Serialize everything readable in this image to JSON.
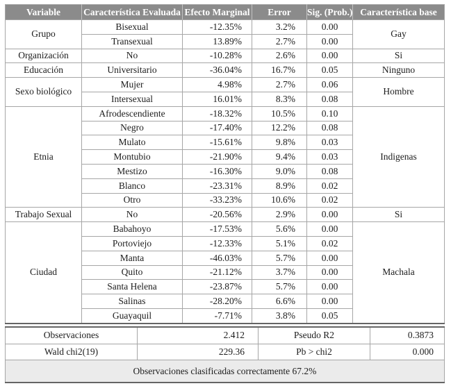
{
  "colors": {
    "header_bg": "#8b8b8b",
    "header_text": "#ffffff",
    "grid_line": "#a6a6a6",
    "outer_line": "#656565",
    "footer_bg": "#ebebeb"
  },
  "table": {
    "headers": [
      "Variable",
      "Característica Evaluada",
      "Efecto Marginal",
      "Error",
      "Sig. (Prob.)",
      "Característica base"
    ],
    "groups": [
      {
        "variable": "Grupo",
        "base": "Gay",
        "rows": [
          [
            "Bisexual",
            "-12.35%",
            "3.2%",
            "0.00"
          ],
          [
            "Transexual",
            "13.89%",
            "2.7%",
            "0.00"
          ]
        ]
      },
      {
        "variable": "Organización",
        "base": "Si",
        "rows": [
          [
            "No",
            "-10.28%",
            "2.6%",
            "0.00"
          ]
        ]
      },
      {
        "variable": "Educación",
        "base": "Ninguno",
        "rows": [
          [
            "Universitario",
            "-36.04%",
            "16.7%",
            "0.05"
          ]
        ]
      },
      {
        "variable": "Sexo biológico",
        "base": "Hombre",
        "rows": [
          [
            "Mujer",
            "4.98%",
            "2.7%",
            "0.06"
          ],
          [
            "Intersexual",
            "16.01%",
            "8.3%",
            "0.08"
          ]
        ]
      },
      {
        "variable": "Etnia",
        "base": "Indigenas",
        "rows": [
          [
            "Afrodescendiente",
            "-18.32%",
            "10.5%",
            "0.10"
          ],
          [
            "Negro",
            "-17.40%",
            "12.2%",
            "0.08"
          ],
          [
            "Mulato",
            "-15.61%",
            "9.8%",
            "0.03"
          ],
          [
            "Montubio",
            "-21.90%",
            "9.4%",
            "0.03"
          ],
          [
            "Mestizo",
            "-16.30%",
            "9.0%",
            "0.08"
          ],
          [
            "Blanco",
            "-23.31%",
            "8.9%",
            "0.02"
          ],
          [
            "Otro",
            "-33.23%",
            "10.6%",
            "0.02"
          ]
        ]
      },
      {
        "variable": "Trabajo Sexual",
        "base": "Si",
        "rows": [
          [
            "No",
            "-20.56%",
            "2.9%",
            "0.00"
          ]
        ]
      },
      {
        "variable": "Ciudad",
        "base": "Machala",
        "rows": [
          [
            "Babahoyo",
            "-17.53%",
            "5.6%",
            "0.00"
          ],
          [
            "Portoviejo",
            "-12.33%",
            "5.1%",
            "0.02"
          ],
          [
            "Manta",
            "-46.03%",
            "5.7%",
            "0.00"
          ],
          [
            "Quito",
            "-21.12%",
            "3.7%",
            "0.00"
          ],
          [
            "Santa Helena",
            "-23.87%",
            "5.7%",
            "0.00"
          ],
          [
            "Salinas",
            "-28.20%",
            "6.6%",
            "0.00"
          ],
          [
            "Guayaquil",
            "-7.71%",
            "3.8%",
            "0.05"
          ]
        ]
      }
    ]
  },
  "summary": {
    "rows": [
      [
        "Observaciones",
        "2.412",
        "Pseudo R2",
        "0.3873"
      ],
      [
        "Wald chi2(19)",
        "229.36",
        "Pb > chi2",
        "0.000"
      ]
    ],
    "footer": "Observaciones clasificadas correctamente 67.2%"
  }
}
